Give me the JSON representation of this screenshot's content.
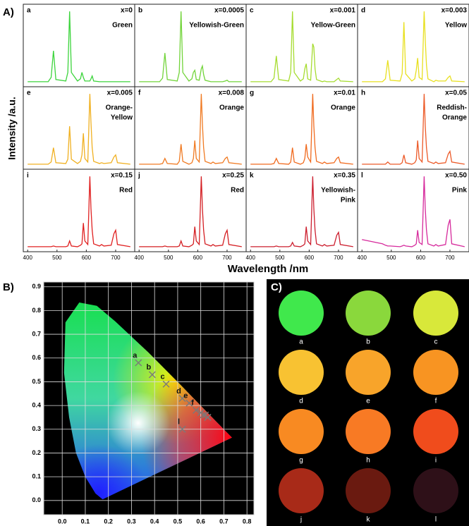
{
  "figure": {
    "label": "A)",
    "xlabel": "Wavelength /nm",
    "ylabel": "Intensity /a.u."
  },
  "chart_data": [
    {
      "type": "line",
      "label": "a",
      "title": "x=0",
      "annotations": [
        "Green"
      ],
      "x": [
        400,
        470,
        480,
        488,
        496,
        530,
        537,
        543,
        549,
        570,
        580,
        585,
        590,
        595,
        605,
        612,
        616,
        620,
        625,
        645,
        652,
        660,
        685,
        694,
        700,
        706,
        750
      ],
      "xlim": [
        385,
        765
      ],
      "ylim": [
        -0.05,
        1.1
      ],
      "series": [
        {
          "color": "#3cd43c",
          "values": [
            0.02,
            0.02,
            0.08,
            0.45,
            0.05,
            0.03,
            0.15,
            1.0,
            0.15,
            0.03,
            0.06,
            0.15,
            0.08,
            0.03,
            0.03,
            0.03,
            0.06,
            0.1,
            0.03,
            0.02,
            0.02,
            0.02,
            0.02,
            0.02,
            0.02,
            0.02,
            0.02
          ]
        }
      ]
    },
    {
      "type": "line",
      "label": "b",
      "title": "x=0.0005",
      "annotations": [
        "Yellowish-Green"
      ],
      "x": [
        400,
        470,
        480,
        488,
        496,
        530,
        537,
        543,
        549,
        570,
        580,
        585,
        590,
        595,
        605,
        612,
        616,
        620,
        625,
        645,
        652,
        660,
        685,
        694,
        700,
        706,
        750
      ],
      "xlim": [
        385,
        765
      ],
      "ylim": [
        -0.05,
        1.1
      ],
      "series": [
        {
          "color": "#72d43a",
          "values": [
            0.02,
            0.02,
            0.07,
            0.42,
            0.05,
            0.03,
            0.15,
            1.0,
            0.15,
            0.03,
            0.06,
            0.15,
            0.18,
            0.05,
            0.04,
            0.2,
            0.24,
            0.12,
            0.04,
            0.02,
            0.02,
            0.02,
            0.02,
            0.03,
            0.04,
            0.02,
            0.02
          ]
        }
      ]
    },
    {
      "type": "line",
      "label": "c",
      "title": "x=0.001",
      "annotations": [
        "Yellow-Green"
      ],
      "x": [
        400,
        470,
        480,
        488,
        496,
        530,
        537,
        543,
        549,
        570,
        580,
        585,
        590,
        595,
        605,
        612,
        616,
        620,
        625,
        645,
        652,
        660,
        685,
        694,
        700,
        706,
        750
      ],
      "xlim": [
        385,
        765
      ],
      "ylim": [
        -0.05,
        1.1
      ],
      "series": [
        {
          "color": "#a6dc30",
          "values": [
            0.02,
            0.02,
            0.07,
            0.38,
            0.05,
            0.03,
            0.15,
            1.0,
            0.15,
            0.03,
            0.06,
            0.2,
            0.27,
            0.06,
            0.04,
            0.55,
            0.5,
            0.2,
            0.05,
            0.02,
            0.03,
            0.02,
            0.02,
            0.05,
            0.07,
            0.03,
            0.02
          ]
        }
      ]
    },
    {
      "type": "line",
      "label": "d",
      "title": "x=0.003",
      "annotations": [
        "Yellow"
      ],
      "x": [
        400,
        470,
        480,
        488,
        496,
        530,
        537,
        543,
        549,
        570,
        580,
        585,
        590,
        595,
        605,
        612,
        616,
        620,
        625,
        645,
        652,
        660,
        685,
        694,
        700,
        706,
        750
      ],
      "xlim": [
        385,
        765
      ],
      "ylim": [
        -0.05,
        1.1
      ],
      "series": [
        {
          "color": "#e8e020",
          "values": [
            0.02,
            0.02,
            0.06,
            0.32,
            0.04,
            0.03,
            0.13,
            0.85,
            0.13,
            0.03,
            0.06,
            0.18,
            0.35,
            0.08,
            0.05,
            1.0,
            0.6,
            0.25,
            0.06,
            0.02,
            0.04,
            0.03,
            0.03,
            0.08,
            0.1,
            0.03,
            0.02
          ]
        }
      ]
    },
    {
      "type": "line",
      "label": "e",
      "title": "x=0.005",
      "annotations": [
        "Orange-",
        "Yellow"
      ],
      "x": [
        400,
        470,
        480,
        488,
        496,
        530,
        537,
        543,
        549,
        570,
        580,
        585,
        590,
        595,
        605,
        612,
        616,
        620,
        625,
        645,
        652,
        660,
        685,
        694,
        700,
        706,
        750
      ],
      "xlim": [
        385,
        765
      ],
      "ylim": [
        -0.05,
        1.1
      ],
      "series": [
        {
          "color": "#f0b020",
          "values": [
            0.02,
            0.02,
            0.05,
            0.25,
            0.04,
            0.03,
            0.09,
            0.55,
            0.09,
            0.03,
            0.06,
            0.15,
            0.45,
            0.1,
            0.05,
            1.0,
            0.6,
            0.25,
            0.06,
            0.03,
            0.04,
            0.03,
            0.04,
            0.12,
            0.15,
            0.04,
            0.02
          ]
        }
      ]
    },
    {
      "type": "line",
      "label": "f",
      "title": "x=0.008",
      "annotations": [
        "Orange"
      ],
      "x": [
        400,
        470,
        480,
        488,
        496,
        530,
        537,
        543,
        549,
        570,
        580,
        585,
        590,
        595,
        605,
        612,
        616,
        620,
        625,
        645,
        652,
        660,
        685,
        694,
        700,
        706,
        750
      ],
      "xlim": [
        385,
        765
      ],
      "ylim": [
        -0.05,
        1.1
      ],
      "series": [
        {
          "color": "#f07a22",
          "values": [
            0.02,
            0.02,
            0.03,
            0.1,
            0.03,
            0.02,
            0.06,
            0.3,
            0.06,
            0.02,
            0.04,
            0.1,
            0.35,
            0.1,
            0.05,
            1.0,
            0.58,
            0.25,
            0.06,
            0.03,
            0.05,
            0.03,
            0.04,
            0.1,
            0.12,
            0.04,
            0.02
          ]
        }
      ]
    },
    {
      "type": "line",
      "label": "g",
      "title": "x=0.01",
      "annotations": [
        "Orange"
      ],
      "x": [
        400,
        470,
        480,
        488,
        496,
        530,
        537,
        543,
        549,
        570,
        580,
        585,
        590,
        595,
        605,
        612,
        616,
        620,
        625,
        645,
        652,
        660,
        685,
        694,
        700,
        706,
        750
      ],
      "xlim": [
        385,
        765
      ],
      "ylim": [
        -0.05,
        1.1
      ],
      "series": [
        {
          "color": "#f06a1e",
          "values": [
            0.02,
            0.02,
            0.03,
            0.1,
            0.03,
            0.02,
            0.05,
            0.25,
            0.05,
            0.02,
            0.04,
            0.1,
            0.3,
            0.12,
            0.05,
            1.0,
            0.55,
            0.25,
            0.06,
            0.03,
            0.05,
            0.03,
            0.04,
            0.1,
            0.12,
            0.04,
            0.02
          ]
        }
      ]
    },
    {
      "type": "line",
      "label": "h",
      "title": "x=0.05",
      "annotations": [
        "Reddish-",
        "Orange"
      ],
      "x": [
        400,
        470,
        480,
        488,
        496,
        530,
        537,
        543,
        549,
        570,
        580,
        585,
        590,
        595,
        605,
        612,
        616,
        620,
        625,
        645,
        652,
        660,
        685,
        694,
        700,
        706,
        750
      ],
      "xlim": [
        385,
        765
      ],
      "ylim": [
        -0.05,
        1.1
      ],
      "series": [
        {
          "color": "#ec5a28",
          "values": [
            0.02,
            0.02,
            0.02,
            0.05,
            0.02,
            0.02,
            0.04,
            0.15,
            0.04,
            0.02,
            0.04,
            0.08,
            0.35,
            0.1,
            0.05,
            1.0,
            0.55,
            0.25,
            0.06,
            0.03,
            0.05,
            0.03,
            0.04,
            0.16,
            0.2,
            0.05,
            0.02
          ]
        }
      ]
    },
    {
      "type": "line",
      "label": "i",
      "title": "x=0.15",
      "annotations": [
        "Red"
      ],
      "x": [
        400,
        470,
        480,
        488,
        496,
        530,
        537,
        543,
        549,
        570,
        580,
        585,
        590,
        595,
        605,
        612,
        616,
        620,
        625,
        645,
        652,
        660,
        685,
        694,
        700,
        706,
        750
      ],
      "xlim": [
        385,
        765
      ],
      "ylim": [
        -0.05,
        1.1
      ],
      "xticks": [
        400,
        500,
        600,
        700
      ],
      "series": [
        {
          "color": "#e02020",
          "values": [
            0.02,
            0.02,
            0.02,
            0.03,
            0.02,
            0.02,
            0.03,
            0.1,
            0.03,
            0.02,
            0.04,
            0.06,
            0.35,
            0.1,
            0.05,
            1.0,
            0.55,
            0.25,
            0.06,
            0.03,
            0.05,
            0.03,
            0.04,
            0.2,
            0.25,
            0.05,
            0.02
          ]
        }
      ]
    },
    {
      "type": "line",
      "label": "j",
      "title": "x=0.25",
      "annotations": [
        "Red"
      ],
      "x": [
        400,
        470,
        480,
        488,
        496,
        530,
        537,
        543,
        549,
        570,
        580,
        585,
        590,
        595,
        605,
        612,
        616,
        620,
        625,
        645,
        652,
        660,
        685,
        694,
        700,
        706,
        750
      ],
      "xlim": [
        385,
        765
      ],
      "ylim": [
        -0.05,
        1.1
      ],
      "xticks": [
        400,
        500,
        600,
        700
      ],
      "series": [
        {
          "color": "#d41e22",
          "values": [
            0.02,
            0.02,
            0.02,
            0.03,
            0.02,
            0.02,
            0.03,
            0.1,
            0.03,
            0.02,
            0.04,
            0.06,
            0.3,
            0.1,
            0.05,
            1.0,
            0.55,
            0.25,
            0.06,
            0.03,
            0.05,
            0.03,
            0.04,
            0.2,
            0.25,
            0.05,
            0.02
          ]
        }
      ]
    },
    {
      "type": "line",
      "label": "k",
      "title": "x=0.35",
      "annotations": [
        "Yellowish-",
        "Pink"
      ],
      "x": [
        400,
        470,
        480,
        488,
        496,
        530,
        537,
        543,
        549,
        570,
        580,
        585,
        590,
        595,
        605,
        612,
        616,
        620,
        625,
        645,
        652,
        660,
        685,
        694,
        700,
        706,
        750
      ],
      "xlim": [
        385,
        765
      ],
      "ylim": [
        -0.05,
        1.1
      ],
      "xticks": [
        400,
        500,
        600,
        700
      ],
      "series": [
        {
          "color": "#cc1e2e",
          "values": [
            0.02,
            0.02,
            0.02,
            0.03,
            0.02,
            0.02,
            0.03,
            0.08,
            0.03,
            0.02,
            0.04,
            0.06,
            0.3,
            0.1,
            0.05,
            1.0,
            0.55,
            0.25,
            0.06,
            0.03,
            0.05,
            0.03,
            0.04,
            0.18,
            0.22,
            0.05,
            0.02
          ]
        }
      ]
    },
    {
      "type": "line",
      "label": "l",
      "title": "x=0.50",
      "annotations": [
        "Pink"
      ],
      "x": [
        400,
        470,
        480,
        488,
        496,
        530,
        537,
        543,
        549,
        570,
        580,
        585,
        590,
        595,
        605,
        612,
        616,
        620,
        625,
        645,
        652,
        660,
        685,
        694,
        700,
        706,
        750
      ],
      "xlim": [
        385,
        765
      ],
      "ylim": [
        -0.05,
        1.1
      ],
      "xticks": [
        400,
        500,
        600,
        700
      ],
      "series": [
        {
          "color": "#d62a9c",
          "values": [
            0.12,
            0.06,
            0.04,
            0.03,
            0.03,
            0.02,
            0.03,
            0.04,
            0.03,
            0.02,
            0.04,
            0.06,
            0.25,
            0.08,
            0.05,
            1.0,
            0.55,
            0.25,
            0.06,
            0.03,
            0.05,
            0.03,
            0.05,
            0.32,
            0.4,
            0.06,
            0.02
          ]
        }
      ]
    },
    {
      "type": "scatter",
      "title": "B)",
      "x": [
        0.33,
        0.39,
        0.45,
        0.52,
        0.55,
        0.58,
        0.6,
        0.61,
        0.62,
        0.63,
        0.63,
        0.52
      ],
      "xlim": [
        -0.08,
        0.83
      ],
      "ylim": [
        -0.06,
        0.92
      ],
      "xticks": [
        {
          "value": 0,
          "label": "0.0"
        },
        0.1,
        0.2,
        0.3,
        0.4,
        0.5,
        0.6,
        0.7,
        0.8
      ],
      "yticks": [
        {
          "value": 0,
          "label": "0.0"
        },
        0.1,
        0.2,
        0.3,
        0.4,
        0.5,
        0.6,
        0.7,
        0.8,
        0.9
      ],
      "grid": true,
      "series": [
        {
          "color": "#7a7a7a",
          "values": [
            0.58,
            0.53,
            0.49,
            0.43,
            0.41,
            0.38,
            0.37,
            0.36,
            0.36,
            0.35,
            0.35,
            0.3
          ]
        }
      ],
      "point_labels": [
        "a",
        "b",
        "c",
        "d",
        "e",
        "f",
        null,
        null,
        null,
        null,
        null,
        "l"
      ]
    }
  ],
  "photo_panel": {
    "title": "C)",
    "labels": [
      "a",
      "b",
      "c",
      "d",
      "e",
      "f",
      "g",
      "h",
      "i",
      "j",
      "k",
      "l"
    ],
    "colors": [
      "#40e84c",
      "#8ad83c",
      "#d8e83a",
      "#f8c232",
      "#f8a42a",
      "#f89422",
      "#f88a22",
      "#f87a24",
      "#f04c1c",
      "#a82a18",
      "#6a1a10",
      "#2e1018"
    ]
  }
}
